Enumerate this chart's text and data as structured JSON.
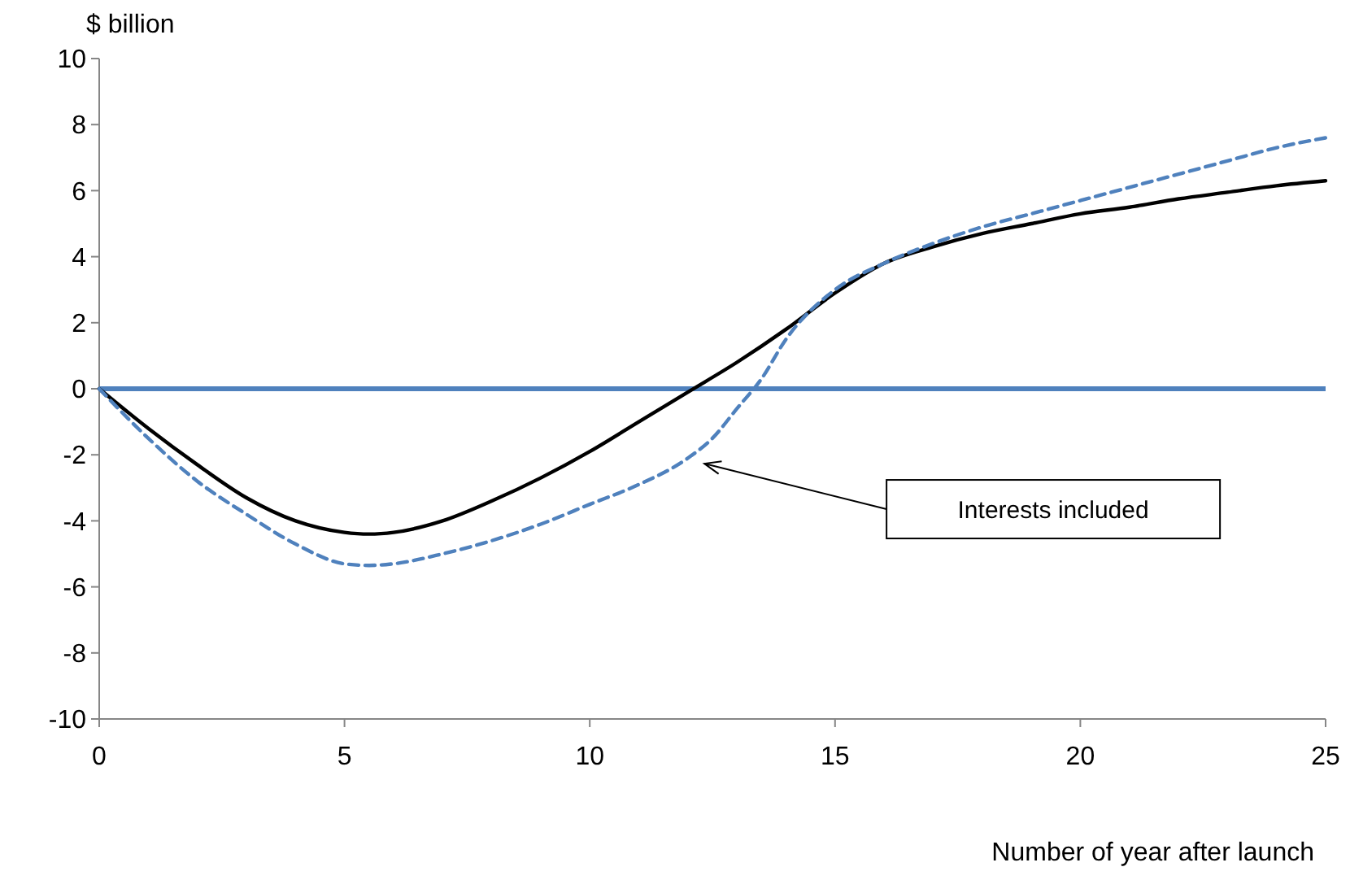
{
  "chart_data": {
    "type": "line",
    "ylabel": "$ billion",
    "xlabel": "Number of year after launch",
    "xlim": [
      0,
      25
    ],
    "xticks": [
      0,
      5,
      10,
      15,
      20,
      25
    ],
    "ylim": [
      -10,
      10
    ],
    "yticks": [
      -10,
      -8,
      -6,
      -4,
      -2,
      0,
      2,
      4,
      6,
      8,
      10
    ],
    "grid": false,
    "series": [
      {
        "color": "#000000",
        "line_style": "solid",
        "x": [
          0,
          1,
          2,
          3,
          4,
          5,
          5.5,
          6,
          7,
          8,
          9,
          10,
          11,
          12,
          13,
          14,
          15,
          16,
          17,
          18,
          19,
          20,
          21,
          22,
          23,
          24,
          25
        ],
        "values": [
          0,
          -1.2,
          -2.3,
          -3.3,
          -4.0,
          -4.35,
          -4.4,
          -4.35,
          -4.0,
          -3.4,
          -2.7,
          -1.9,
          -1.0,
          -0.1,
          0.8,
          1.8,
          2.9,
          3.8,
          4.3,
          4.7,
          5.0,
          5.3,
          5.5,
          5.75,
          5.95,
          6.15,
          6.3
        ]
      },
      {
        "color": "#4f81bd",
        "line_style": "dashed",
        "x": [
          0,
          1,
          2,
          3,
          4,
          5,
          5.5,
          6,
          7,
          8,
          9,
          10,
          11,
          12,
          12.5,
          13,
          13.5,
          14,
          15,
          16,
          17,
          18,
          19,
          20,
          21,
          22,
          23,
          24,
          25
        ],
        "values": [
          0,
          -1.5,
          -2.8,
          -3.8,
          -4.7,
          -5.3,
          -5.35,
          -5.3,
          -5.0,
          -4.6,
          -4.1,
          -3.5,
          -2.9,
          -2.1,
          -1.5,
          -0.6,
          0.3,
          1.5,
          3.0,
          3.8,
          4.4,
          4.9,
          5.3,
          5.7,
          6.1,
          6.5,
          6.9,
          7.3,
          7.6
        ]
      }
    ],
    "ref_lines": [
      {
        "axis": "y",
        "value": 0,
        "color": "#4f81bd",
        "line_style": "solid"
      }
    ],
    "annotations": [
      "Interests included"
    ]
  }
}
